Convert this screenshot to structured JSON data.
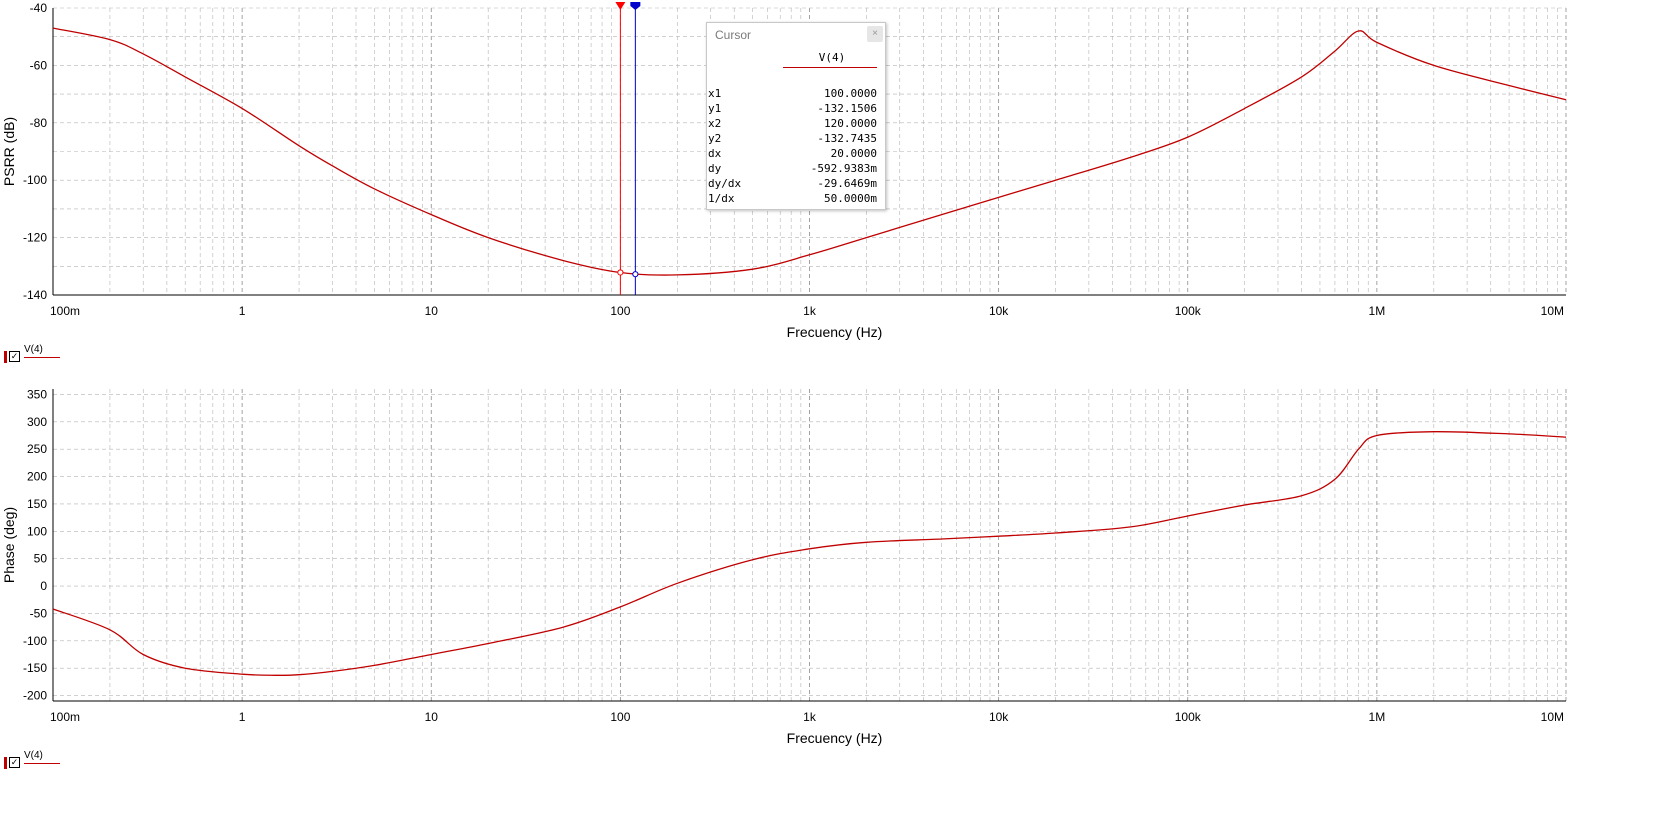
{
  "chart_data": [
    {
      "type": "line",
      "title": "",
      "xlabel": "Frecuency (Hz)",
      "ylabel": "PSRR (dB)",
      "xscale": "log",
      "xlim": [
        0.1,
        10000000
      ],
      "ylim": [
        -140,
        -40
      ],
      "x_ticks": [
        0.1,
        1,
        10,
        100,
        1000,
        10000,
        100000,
        1000000,
        10000000
      ],
      "x_tick_labels": [
        "100m",
        "1",
        "10",
        "100",
        "1k",
        "10k",
        "100k",
        "1M",
        "10M"
      ],
      "y_ticks": [
        -40,
        -60,
        -80,
        -100,
        -120,
        -140
      ],
      "y_tick_labels": [
        "-40",
        "-60",
        "-80",
        "-100",
        "-120",
        "-140"
      ],
      "grid": true,
      "series": [
        {
          "name": "V(4)",
          "color": "#c00000",
          "x": [
            0.1,
            0.2,
            0.3,
            0.5,
            1,
            2,
            3,
            5,
            10,
            20,
            50,
            100,
            200,
            500,
            1000,
            2000,
            5000,
            10000,
            20000,
            50000,
            100000,
            200000,
            400000,
            600000,
            800000,
            1000000,
            2000000,
            5000000,
            10000000
          ],
          "y": [
            -47,
            -51,
            -56,
            -64,
            -75,
            -88,
            -95,
            -103,
            -112,
            -120,
            -128,
            -132.15,
            -133,
            -131,
            -126,
            -120,
            -112,
            -106,
            -100,
            -92,
            -85,
            -75,
            -64,
            -55,
            -48,
            -52,
            -60,
            -67,
            -72
          ]
        }
      ],
      "cursors": [
        {
          "name": "1",
          "x": 100,
          "y": -132.1506,
          "color": "#ff0000"
        },
        {
          "name": "2",
          "x": 120,
          "y": -132.7435,
          "color": "#0000cc"
        }
      ],
      "legend": "bottom-left"
    },
    {
      "type": "line",
      "title": "",
      "xlabel": "Frecuency (Hz)",
      "ylabel": "Phase (deg)",
      "xscale": "log",
      "xlim": [
        0.1,
        10000000
      ],
      "ylim": [
        -210,
        360
      ],
      "x_ticks": [
        0.1,
        1,
        10,
        100,
        1000,
        10000,
        100000,
        1000000,
        10000000
      ],
      "x_tick_labels": [
        "100m",
        "1",
        "10",
        "100",
        "1k",
        "10k",
        "100k",
        "1M",
        "10M"
      ],
      "y_ticks": [
        350,
        300,
        250,
        200,
        150,
        100,
        50,
        0,
        -50,
        -100,
        -150,
        -200
      ],
      "y_tick_labels": [
        "350",
        "300",
        "250",
        "200",
        "150",
        "100",
        "50",
        "0",
        "-50",
        "-100",
        "-150",
        "-200"
      ],
      "grid": true,
      "series": [
        {
          "name": "V(4)",
          "color": "#c00000",
          "x": [
            0.1,
            0.2,
            0.3,
            0.5,
            1,
            1.5,
            2,
            3,
            5,
            10,
            20,
            50,
            100,
            200,
            500,
            1000,
            2000,
            5000,
            10000,
            20000,
            50000,
            100000,
            200000,
            400000,
            600000,
            800000,
            1000000,
            2000000,
            5000000,
            10000000
          ],
          "y": [
            -42,
            -80,
            -125,
            -150,
            -161,
            -163,
            -162,
            -156,
            -145,
            -125,
            -105,
            -75,
            -38,
            5,
            48,
            68,
            80,
            86,
            91,
            97,
            108,
            128,
            148,
            165,
            195,
            250,
            275,
            282,
            278,
            272
          ]
        }
      ],
      "legend": "bottom-left"
    }
  ],
  "legend_items": [
    {
      "label": "V(4)",
      "check": "✓"
    },
    {
      "label": "V(4)",
      "check": "✓"
    }
  ],
  "cursor_window": {
    "title": "Cursor",
    "close": "×",
    "column": "V(4)",
    "rows": [
      {
        "key": "x1",
        "value": "100.0000"
      },
      {
        "key": "y1",
        "value": "-132.1506"
      },
      {
        "key": "x2",
        "value": "120.0000"
      },
      {
        "key": "y2",
        "value": "-132.7435"
      },
      {
        "key": "dx",
        "value": "20.0000"
      },
      {
        "key": "dy",
        "value": "-592.9383m"
      },
      {
        "key": "dy/dx",
        "value": "-29.6469m"
      },
      {
        "key": "1/dx",
        "value": "50.0000m"
      }
    ]
  },
  "cursor_markers": [
    "1",
    "2"
  ]
}
